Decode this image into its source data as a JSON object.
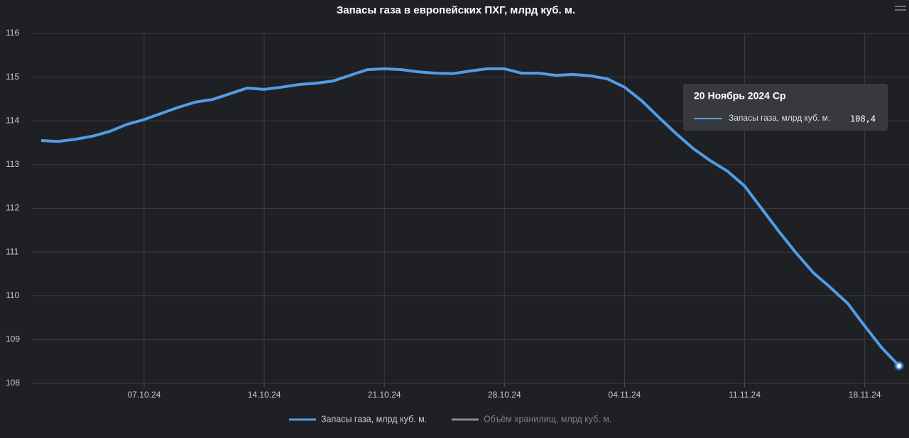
{
  "chart_data": {
    "type": "line",
    "title": "Запасы газа в европейских ПХГ, млрд куб. м.",
    "x": [
      "01.10.24",
      "02.10.24",
      "03.10.24",
      "04.10.24",
      "05.10.24",
      "06.10.24",
      "07.10.24",
      "08.10.24",
      "09.10.24",
      "10.10.24",
      "11.10.24",
      "12.10.24",
      "13.10.24",
      "14.10.24",
      "15.10.24",
      "16.10.24",
      "17.10.24",
      "18.10.24",
      "19.10.24",
      "20.10.24",
      "21.10.24",
      "22.10.24",
      "23.10.24",
      "24.10.24",
      "25.10.24",
      "26.10.24",
      "27.10.24",
      "28.10.24",
      "29.10.24",
      "30.10.24",
      "31.10.24",
      "01.11.24",
      "02.11.24",
      "03.11.24",
      "04.11.24",
      "05.11.24",
      "06.11.24",
      "07.11.24",
      "08.11.24",
      "09.11.24",
      "10.11.24",
      "11.11.24",
      "12.11.24",
      "13.11.24",
      "14.11.24",
      "15.11.24",
      "16.11.24",
      "17.11.24",
      "18.11.24",
      "19.11.24",
      "20.11.24"
    ],
    "series": [
      {
        "name": "Запасы газа, млрд куб. м.",
        "color": "#4f9de8",
        "values": [
          113.55,
          113.53,
          113.58,
          113.65,
          113.76,
          113.92,
          114.03,
          114.17,
          114.31,
          114.43,
          114.49,
          114.62,
          114.75,
          114.72,
          114.77,
          114.83,
          114.86,
          114.91,
          115.04,
          115.17,
          115.19,
          115.17,
          115.12,
          115.09,
          115.08,
          115.14,
          115.19,
          115.19,
          115.09,
          115.09,
          115.04,
          115.06,
          115.03,
          114.96,
          114.77,
          114.46,
          114.08,
          113.71,
          113.37,
          113.09,
          112.85,
          112.51,
          111.99,
          111.47,
          110.98,
          110.53,
          110.19,
          109.83,
          109.31,
          108.81,
          108.4
        ]
      }
    ],
    "hidden_series": [
      {
        "name": "Объём хранилищ, млрд куб. м.",
        "color": "#8a8b8e"
      }
    ],
    "xticks": [
      "07.10.24",
      "14.10.24",
      "21.10.24",
      "28.10.24",
      "04.11.24",
      "11.11.24",
      "18.11.24"
    ],
    "ylim": [
      108,
      116
    ],
    "yticks": [
      108,
      109,
      110,
      111,
      112,
      113,
      114,
      115,
      116
    ],
    "grid": true,
    "tooltip": {
      "title": "20 Ноябрь 2024 Ср",
      "value": "108,4"
    }
  }
}
